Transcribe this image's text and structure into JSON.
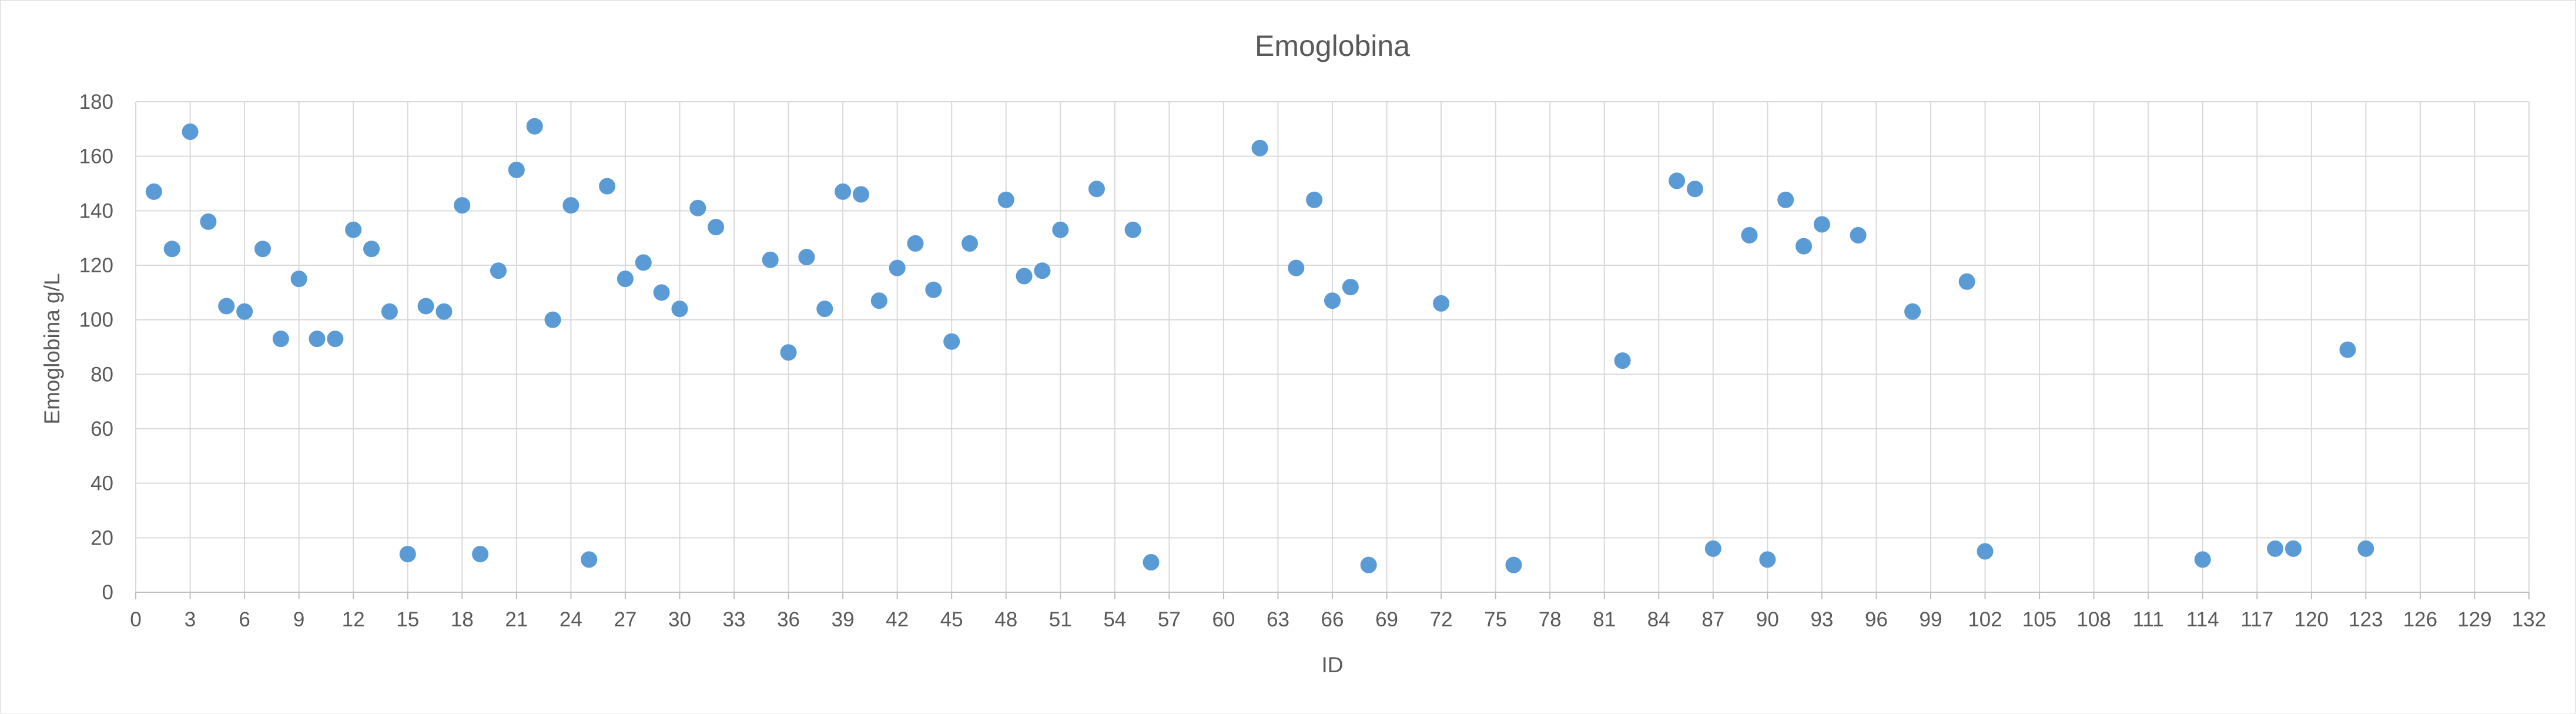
{
  "chart_data": {
    "type": "scatter",
    "title": "Emoglobina",
    "xlabel": "ID",
    "ylabel": "Emoglobina g/L",
    "xlim": [
      0,
      132
    ],
    "ylim": [
      0,
      180
    ],
    "xticks": [
      0,
      3,
      6,
      9,
      12,
      15,
      18,
      21,
      24,
      27,
      30,
      33,
      36,
      39,
      42,
      45,
      48,
      51,
      54,
      57,
      60,
      63,
      66,
      69,
      72,
      75,
      78,
      81,
      84,
      87,
      90,
      93,
      96,
      99,
      102,
      105,
      108,
      111,
      114,
      117,
      120,
      123,
      126,
      129,
      132
    ],
    "yticks": [
      0,
      20,
      40,
      60,
      80,
      100,
      120,
      140,
      160,
      180
    ],
    "grid": true,
    "legend": false,
    "marker_color": "#5b9bd5",
    "series": [
      {
        "points": [
          [
            1,
            147
          ],
          [
            2,
            126
          ],
          [
            3,
            169
          ],
          [
            4,
            136
          ],
          [
            5,
            105
          ],
          [
            6,
            103
          ],
          [
            7,
            126
          ],
          [
            8,
            93
          ],
          [
            9,
            115
          ],
          [
            10,
            93
          ],
          [
            11,
            93
          ],
          [
            12,
            133
          ],
          [
            13,
            126
          ],
          [
            14,
            103
          ],
          [
            15,
            14
          ],
          [
            16,
            105
          ],
          [
            17,
            103
          ],
          [
            18,
            142
          ],
          [
            19,
            14
          ],
          [
            20,
            118
          ],
          [
            21,
            155
          ],
          [
            22,
            171
          ],
          [
            23,
            100
          ],
          [
            24,
            142
          ],
          [
            25,
            12
          ],
          [
            26,
            149
          ],
          [
            27,
            115
          ],
          [
            28,
            121
          ],
          [
            29,
            110
          ],
          [
            30,
            104
          ],
          [
            31,
            141
          ],
          [
            32,
            134
          ],
          [
            35,
            122
          ],
          [
            36,
            88
          ],
          [
            37,
            123
          ],
          [
            38,
            104
          ],
          [
            39,
            147
          ],
          [
            40,
            146
          ],
          [
            41,
            107
          ],
          [
            42,
            119
          ],
          [
            43,
            128
          ],
          [
            44,
            111
          ],
          [
            45,
            92
          ],
          [
            46,
            128
          ],
          [
            48,
            144
          ],
          [
            49,
            116
          ],
          [
            50,
            118
          ],
          [
            51,
            133
          ],
          [
            53,
            148
          ],
          [
            55,
            133
          ],
          [
            56,
            11
          ],
          [
            62,
            163
          ],
          [
            64,
            119
          ],
          [
            65,
            144
          ],
          [
            66,
            107
          ],
          [
            67,
            112
          ],
          [
            68,
            10
          ],
          [
            72,
            106
          ],
          [
            76,
            10
          ],
          [
            82,
            85
          ],
          [
            85,
            151
          ],
          [
            86,
            148
          ],
          [
            87,
            16
          ],
          [
            89,
            131
          ],
          [
            90,
            12
          ],
          [
            91,
            144
          ],
          [
            92,
            127
          ],
          [
            93,
            135
          ],
          [
            95,
            131
          ],
          [
            98,
            103
          ],
          [
            101,
            114
          ],
          [
            102,
            15
          ],
          [
            114,
            12
          ],
          [
            118,
            16
          ],
          [
            119,
            16
          ],
          [
            122,
            89
          ],
          [
            123,
            16
          ]
        ]
      }
    ]
  }
}
